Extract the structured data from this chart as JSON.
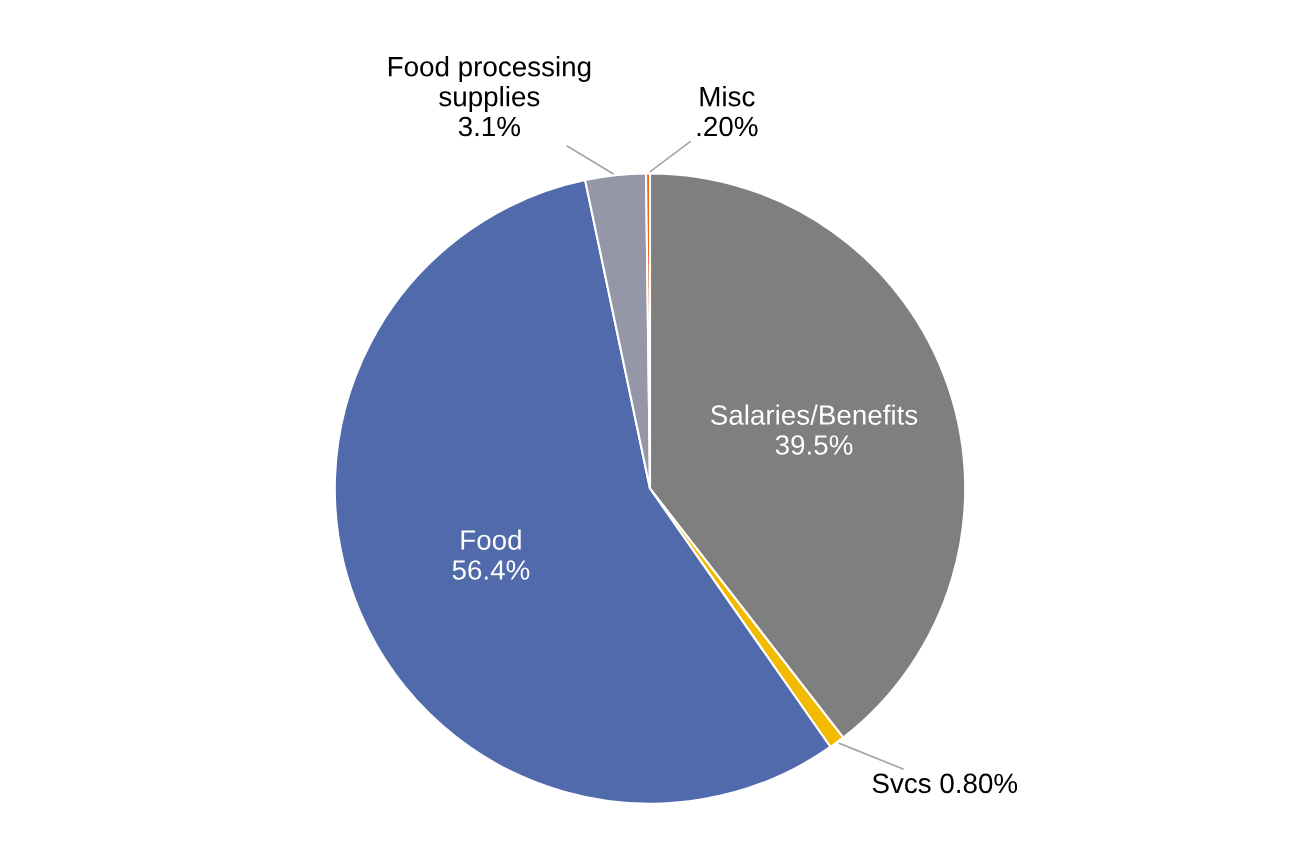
{
  "chart_data": {
    "type": "pie",
    "categories": [
      "Salaries/Benefits",
      "Svcs",
      "Food",
      "Food processing\nsupplies",
      "Misc"
    ],
    "values": [
      39.5,
      0.8,
      56.4,
      3.1,
      0.2
    ],
    "value_labels": [
      "39.5%",
      "0.80%",
      "56.4%",
      "3.1%",
      ".20%"
    ],
    "colors": [
      "#7f7f7f",
      "#f2bb00",
      "#506aab",
      "#9597a8",
      "#e8601c"
    ]
  }
}
